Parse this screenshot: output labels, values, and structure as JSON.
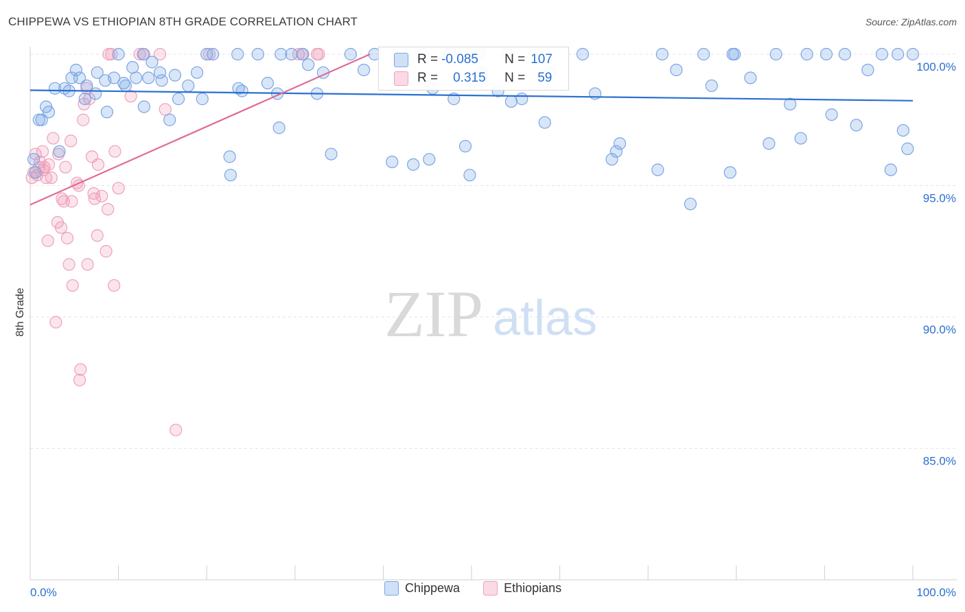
{
  "title": "CHIPPEWA VS ETHIOPIAN 8TH GRADE CORRELATION CHART",
  "source": "Source: ZipAtlas.com",
  "watermark": {
    "zip": "ZIP",
    "atlas": "atlas"
  },
  "stats": {
    "chippewa": {
      "r_label": "R =",
      "r": "-0.085",
      "n_label": "N =",
      "n": "107"
    },
    "ethiopians": {
      "r_label": "R =",
      "r": "0.315",
      "n_label": "N =",
      "n": "59"
    }
  },
  "legend": {
    "chippewa": "Chippewa",
    "ethiopians": "Ethiopians"
  },
  "colors": {
    "blue_fill": "rgba(120,165,230,0.28)",
    "blue_stroke": "#7aa5e3",
    "blue_line": "#2a6fd1",
    "pink_fill": "rgba(240,150,180,0.25)",
    "pink_stroke": "#eea0b9",
    "pink_line": "#e06b95",
    "tick_label": "#2a6fd1"
  },
  "chart_data": {
    "type": "scatter",
    "xlabel": "",
    "ylabel": "8th Grade",
    "xlim": [
      0,
      100
    ],
    "ylim": [
      80.2,
      100.6
    ],
    "x_tick_labels": [
      "0.0%",
      "100.0%"
    ],
    "y_ticks": [
      {
        "value": 100,
        "label": "100.0%"
      },
      {
        "value": 95,
        "label": "95.0%"
      },
      {
        "value": 90,
        "label": "90.0%"
      },
      {
        "value": 85,
        "label": "85.0%"
      }
    ],
    "series": [
      {
        "name": "Chippewa",
        "trend": {
          "x": [
            0,
            100
          ],
          "y": [
            98.63,
            98.23
          ]
        },
        "points": [
          [
            0.4,
            96.0
          ],
          [
            0.6,
            95.5
          ],
          [
            1.0,
            97.5
          ],
          [
            1.3,
            97.5
          ],
          [
            1.8,
            98.0
          ],
          [
            2.1,
            97.8
          ],
          [
            2.8,
            98.7
          ],
          [
            3.3,
            96.3
          ],
          [
            3.9,
            98.7
          ],
          [
            4.4,
            98.6
          ],
          [
            4.7,
            99.1
          ],
          [
            5.2,
            99.4
          ],
          [
            5.6,
            99.1
          ],
          [
            6.2,
            98.3
          ],
          [
            6.4,
            98.8
          ],
          [
            7.4,
            98.5
          ],
          [
            7.6,
            99.3
          ],
          [
            8.5,
            99.0
          ],
          [
            8.7,
            97.8
          ],
          [
            9.5,
            99.1
          ],
          [
            10.0,
            100.0
          ],
          [
            10.6,
            98.9
          ],
          [
            10.8,
            98.8
          ],
          [
            11.6,
            99.5
          ],
          [
            12.0,
            99.1
          ],
          [
            12.8,
            100.0
          ],
          [
            12.9,
            98.0
          ],
          [
            13.4,
            99.1
          ],
          [
            13.8,
            99.7
          ],
          [
            14.7,
            99.3
          ],
          [
            14.9,
            99.0
          ],
          [
            15.8,
            97.5
          ],
          [
            16.4,
            99.2
          ],
          [
            16.8,
            98.3
          ],
          [
            17.9,
            98.8
          ],
          [
            18.9,
            99.3
          ],
          [
            19.5,
            98.3
          ],
          [
            20.0,
            100.0
          ],
          [
            20.7,
            100.0
          ],
          [
            22.6,
            96.1
          ],
          [
            22.7,
            95.4
          ],
          [
            23.5,
            100.0
          ],
          [
            23.6,
            98.7
          ],
          [
            24.0,
            98.6
          ],
          [
            25.8,
            100.0
          ],
          [
            26.9,
            98.9
          ],
          [
            28.0,
            98.5
          ],
          [
            28.2,
            97.2
          ],
          [
            28.4,
            100.0
          ],
          [
            29.6,
            100.0
          ],
          [
            30.9,
            100.0
          ],
          [
            31.5,
            99.6
          ],
          [
            32.5,
            98.5
          ],
          [
            33.2,
            99.3
          ],
          [
            34.1,
            96.2
          ],
          [
            36.3,
            100.0
          ],
          [
            37.8,
            99.4
          ],
          [
            39.0,
            100.0
          ],
          [
            41.0,
            95.9
          ],
          [
            43.4,
            95.8
          ],
          [
            44.5,
            100.0
          ],
          [
            45.2,
            96.0
          ],
          [
            45.6,
            98.7
          ],
          [
            47.5,
            100.0
          ],
          [
            48.0,
            98.3
          ],
          [
            49.3,
            96.5
          ],
          [
            49.8,
            95.4
          ],
          [
            50.9,
            100.0
          ],
          [
            51.1,
            99.3
          ],
          [
            53.0,
            98.6
          ],
          [
            54.1,
            100.0
          ],
          [
            54.5,
            98.2
          ],
          [
            55.7,
            98.3
          ],
          [
            58.3,
            97.4
          ],
          [
            58.9,
            99.3
          ],
          [
            62.6,
            100.0
          ],
          [
            64.0,
            98.5
          ],
          [
            65.9,
            96.0
          ],
          [
            66.4,
            96.3
          ],
          [
            66.8,
            96.6
          ],
          [
            71.1,
            95.6
          ],
          [
            71.6,
            100.0
          ],
          [
            73.2,
            99.4
          ],
          [
            74.8,
            94.3
          ],
          [
            76.3,
            100.0
          ],
          [
            77.2,
            98.8
          ],
          [
            79.3,
            95.5
          ],
          [
            79.6,
            100.0
          ],
          [
            79.8,
            100.0
          ],
          [
            81.6,
            99.1
          ],
          [
            83.7,
            96.6
          ],
          [
            84.5,
            100.0
          ],
          [
            86.1,
            98.1
          ],
          [
            87.3,
            96.8
          ],
          [
            88.0,
            100.0
          ],
          [
            90.2,
            100.0
          ],
          [
            90.8,
            97.7
          ],
          [
            92.3,
            100.0
          ],
          [
            93.6,
            97.3
          ],
          [
            94.9,
            99.4
          ],
          [
            96.5,
            100.0
          ],
          [
            97.5,
            95.6
          ],
          [
            98.3,
            100.0
          ],
          [
            98.9,
            97.1
          ],
          [
            99.4,
            96.4
          ],
          [
            100.0,
            100.0
          ]
        ]
      },
      {
        "name": "Ethiopians",
        "trend": {
          "x": [
            0,
            38.5
          ],
          "y": [
            94.27,
            100.0
          ]
        },
        "points": [
          [
            0.2,
            95.3
          ],
          [
            0.4,
            95.5
          ],
          [
            0.6,
            96.2
          ],
          [
            0.8,
            95.4
          ],
          [
            1.0,
            95.7
          ],
          [
            1.1,
            95.9
          ],
          [
            1.4,
            96.3
          ],
          [
            1.5,
            95.6
          ],
          [
            1.6,
            95.7
          ],
          [
            1.8,
            95.3
          ],
          [
            2.0,
            92.9
          ],
          [
            2.1,
            95.8
          ],
          [
            2.4,
            95.3
          ],
          [
            2.6,
            96.8
          ],
          [
            2.9,
            89.8
          ],
          [
            3.1,
            93.6
          ],
          [
            3.2,
            96.2
          ],
          [
            3.5,
            93.4
          ],
          [
            3.6,
            94.5
          ],
          [
            3.8,
            94.4
          ],
          [
            4.0,
            95.7
          ],
          [
            4.2,
            93.0
          ],
          [
            4.4,
            92.0
          ],
          [
            4.6,
            96.7
          ],
          [
            4.7,
            94.4
          ],
          [
            4.8,
            91.2
          ],
          [
            5.3,
            95.1
          ],
          [
            5.5,
            95.0
          ],
          [
            5.6,
            87.6
          ],
          [
            5.7,
            88.0
          ],
          [
            6.0,
            97.5
          ],
          [
            6.1,
            98.1
          ],
          [
            6.4,
            98.7
          ],
          [
            6.5,
            92.0
          ],
          [
            6.7,
            98.3
          ],
          [
            7.0,
            96.1
          ],
          [
            7.2,
            94.7
          ],
          [
            7.3,
            94.5
          ],
          [
            7.6,
            93.1
          ],
          [
            7.7,
            95.8
          ],
          [
            8.1,
            94.6
          ],
          [
            8.6,
            92.5
          ],
          [
            8.8,
            94.1
          ],
          [
            8.9,
            100.0
          ],
          [
            9.2,
            100.0
          ],
          [
            9.5,
            91.2
          ],
          [
            9.6,
            96.3
          ],
          [
            10.0,
            94.9
          ],
          [
            11.4,
            98.4
          ],
          [
            12.4,
            100.0
          ],
          [
            12.9,
            100.0
          ],
          [
            14.7,
            100.0
          ],
          [
            15.3,
            97.9
          ],
          [
            16.5,
            85.7
          ],
          [
            20.3,
            100.0
          ],
          [
            30.4,
            100.0
          ],
          [
            30.8,
            100.0
          ],
          [
            32.5,
            100.0
          ],
          [
            32.7,
            100.0
          ]
        ]
      }
    ]
  }
}
